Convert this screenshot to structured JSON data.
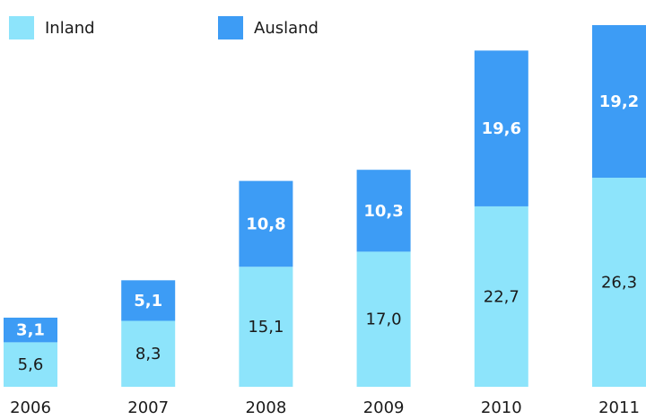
{
  "chart_data": {
    "type": "stacked_bar",
    "categories": [
      "2006",
      "2007",
      "2008",
      "2009",
      "2010",
      "2011"
    ],
    "series": [
      {
        "name": "Inland",
        "color": "#8de4fb",
        "values": [
          5.6,
          8.3,
          15.1,
          17.0,
          22.7,
          26.3
        ],
        "value_labels": [
          "5,6",
          "8,3",
          "15,1",
          "17,0",
          "22,7",
          "26,3"
        ]
      },
      {
        "name": "Ausland",
        "color": "#3d9cf5",
        "values": [
          3.1,
          5.1,
          10.8,
          10.3,
          19.6,
          19.2
        ],
        "value_labels": [
          "3,1",
          "5,1",
          "10,8",
          "10,3",
          "19,6",
          "19,2"
        ]
      }
    ]
  }
}
